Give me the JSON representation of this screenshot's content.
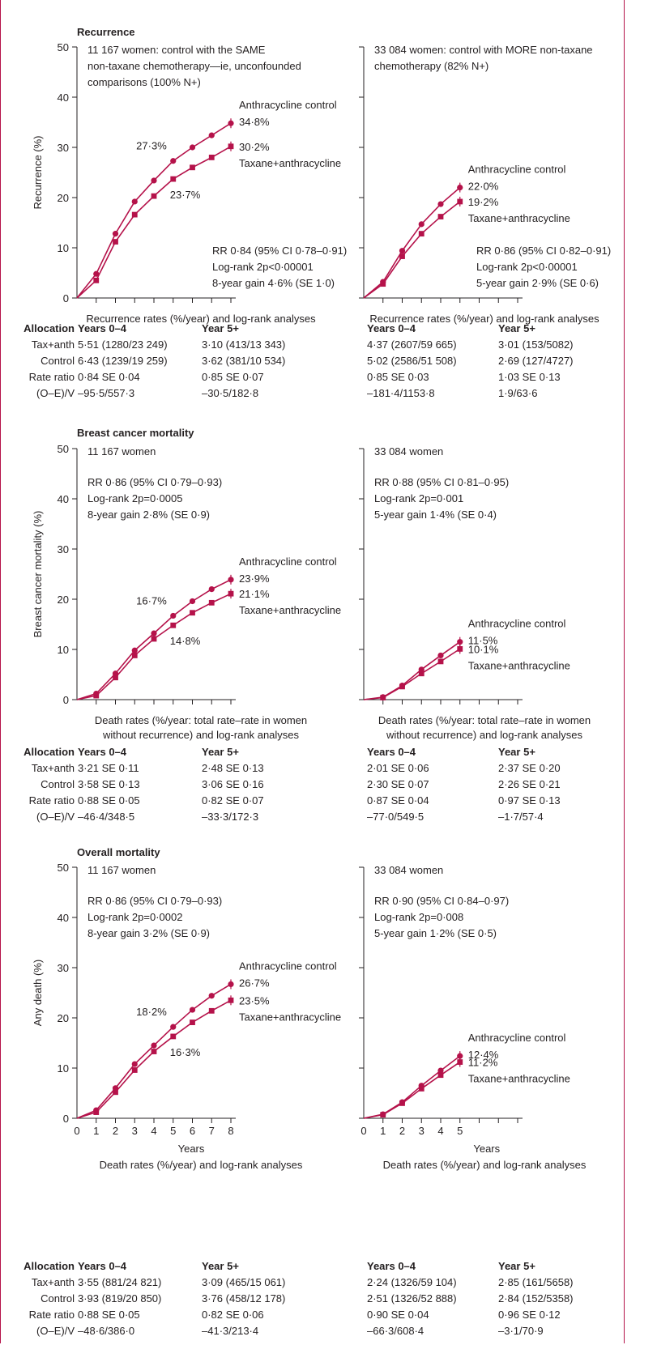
{
  "colors": {
    "series": "#b5124a",
    "axis": "#231f20",
    "frame": "#b5124a"
  },
  "panels": [
    {
      "title": "Recurrence",
      "ylabel": "Recurrence (%)",
      "left": {
        "heading": [
          "11 167 women: control with the SAME",
          "non-taxane chemotherapy—ie, unconfounded",
          "comparisons (100% N+)"
        ],
        "stats": [
          "RR 0·84 (95% CI 0·78–0·91)",
          "Log-rank 2p<0·00001",
          "8-year gain 4·6% (SE 1·0)"
        ],
        "caption": [
          "Recurrence rates (%/year) and log-rank analyses"
        ]
      },
      "right": {
        "heading": [
          "33 084 women: control with MORE non-taxane",
          "chemotherapy (82% N+)"
        ],
        "stats": [
          "RR 0·86 (95% CI 0·82–0·91)",
          "Log-rank 2p<0·00001",
          "5-year gain 2·9% (SE 0·6)"
        ],
        "caption": [
          "Recurrence rates (%/year) and log-rank analyses"
        ]
      },
      "table": {
        "labels": [
          "Allocation",
          "Tax+anth",
          "Control",
          "Rate ratio",
          "(O–E)/V"
        ],
        "left": {
          "headers": [
            "Years 0–4",
            "Year 5+"
          ],
          "rows": [
            [
              "5·51 (1280/23 249)",
              "3·10 (413/13 343)"
            ],
            [
              "6·43 (1239/19 259)",
              "3·62 (381/10 534)"
            ],
            [
              "0·84 SE 0·04",
              "0·85 SE 0·07"
            ],
            [
              "–95·5/557·3",
              "–30·5/182·8"
            ]
          ]
        },
        "right": {
          "headers": [
            "Years 0–4",
            "Year 5+"
          ],
          "rows": [
            [
              "4·37 (2607/59 665)",
              "3·01 (153/5082)"
            ],
            [
              "5·02 (2586/51 508)",
              "2·69 (127/4727)"
            ],
            [
              "0·85 SE 0·03",
              "1·03 SE 0·13"
            ],
            [
              "–181·4/1153·8",
              "1·9/63·6"
            ]
          ]
        }
      }
    },
    {
      "title": "Breast cancer mortality",
      "ylabel": "Breast cancer mortality (%)",
      "left": {
        "heading": [
          "11 167 women"
        ],
        "stats": [
          "RR 0·86 (95% CI 0·79–0·93)",
          "Log-rank 2p=0·0005",
          "8-year gain 2·8% (SE 0·9)"
        ],
        "caption": [
          "Death rates (%/year: total rate–rate in women",
          "without recurrence) and log-rank analyses"
        ]
      },
      "right": {
        "heading": [
          "33 084 women"
        ],
        "stats": [
          "RR 0·88 (95% CI 0·81–0·95)",
          "Log-rank 2p=0·001",
          "5-year gain 1·4% (SE 0·4)"
        ],
        "caption": [
          "Death rates (%/year: total rate–rate in women",
          "without recurrence) and log-rank analyses"
        ]
      },
      "table": {
        "labels": [
          "Allocation",
          "Tax+anth",
          "Control",
          "Rate ratio",
          "(O–E)/V"
        ],
        "left": {
          "headers": [
            "Years 0–4",
            "Year 5+"
          ],
          "rows": [
            [
              "3·21 SE 0·11",
              "2·48 SE 0·13"
            ],
            [
              "3·58 SE 0·13",
              "3·06 SE 0·16"
            ],
            [
              "0·88 SE 0·05",
              "0·82 SE 0·07"
            ],
            [
              "–46·4/348·5",
              "–33·3/172·3"
            ]
          ]
        },
        "right": {
          "headers": [
            "Years 0–4",
            "Year 5+"
          ],
          "rows": [
            [
              "2·01 SE 0·06",
              "2·37 SE 0·20"
            ],
            [
              "2·30 SE 0·07",
              "2·26 SE 0·21"
            ],
            [
              "0·87 SE 0·04",
              "0·97 SE 0·13"
            ],
            [
              "–77·0/549·5",
              "–1·7/57·4"
            ]
          ]
        }
      }
    },
    {
      "title": "Overall mortality",
      "ylabel": "Any death (%)",
      "left": {
        "heading": [
          "11 167 women"
        ],
        "stats": [
          "RR 0·86 (95% CI 0·79–0·93)",
          "Log-rank 2p=0·0002",
          "8-year gain 3·2% (SE 0·9)"
        ],
        "caption": [
          "Death rates (%/year) and log-rank analyses"
        ]
      },
      "right": {
        "heading": [
          "33 084 women"
        ],
        "stats": [
          "RR 0·90 (95% CI 0·84–0·97)",
          "Log-rank 2p=0·008",
          "5-year gain 1·2% (SE 0·5)"
        ],
        "caption": [
          "Death rates (%/year) and log-rank analyses"
        ]
      },
      "table": {
        "labels": [
          "Allocation",
          "Tax+anth",
          "Control",
          "Rate ratio",
          "(O–E)/V"
        ],
        "left": {
          "headers": [
            "Years 0–4",
            "Year 5+"
          ],
          "rows": [
            [
              "3·55 (881/24 821)",
              "3·09 (465/15 061)"
            ],
            [
              "3·93 (819/20 850)",
              "3·76 (458/12 178)"
            ],
            [
              "0·88 SE 0·05",
              "0·82 SE 0·06"
            ],
            [
              "–48·6/386·0",
              "–41·3/213·4"
            ]
          ]
        },
        "right": {
          "headers": [
            "Years 0–4",
            "Year 5+"
          ],
          "rows": [
            [
              "2·24 (1326/59 104)",
              "2·85 (161/5658)"
            ],
            [
              "2·51 (1326/52 888)",
              "2·84 (152/5358)"
            ],
            [
              "0·90 SE 0·04",
              "0·96 SE 0·12"
            ],
            [
              "–66·3/608·4",
              "–3·1/70·9"
            ]
          ]
        }
      }
    }
  ],
  "chart_data": [
    {
      "type": "line",
      "title": "Recurrence",
      "panel": "left",
      "xlabel": "",
      "ylabel": "Recurrence (%)",
      "xlim": [
        0,
        8
      ],
      "ylim": [
        0,
        50
      ],
      "yticks": [
        0,
        10,
        20,
        30,
        40,
        50
      ],
      "series": [
        {
          "name": "Anthracycline control",
          "marker": "circle",
          "x": [
            0,
            1,
            2,
            3,
            4,
            5,
            6,
            7,
            8
          ],
          "y": [
            0,
            4.8,
            12.8,
            19.2,
            23.4,
            27.3,
            30.0,
            32.4,
            34.8
          ],
          "end_label": "34·8%"
        },
        {
          "name": "Taxane+anthracycline",
          "marker": "square",
          "x": [
            0,
            1,
            2,
            3,
            4,
            5,
            6,
            7,
            8
          ],
          "y": [
            0,
            3.5,
            11.2,
            16.6,
            20.3,
            23.7,
            26.0,
            28.0,
            30.2
          ],
          "end_label": "30·2%"
        }
      ],
      "annotations": [
        {
          "x": 5,
          "series": 0,
          "text": "27·3%"
        },
        {
          "x": 5,
          "series": 1,
          "text": "23·7%"
        }
      ]
    },
    {
      "type": "line",
      "title": "",
      "panel": "right",
      "xlabel": "",
      "ylabel": "",
      "xlim": [
        0,
        8
      ],
      "ylim": [
        0,
        50
      ],
      "series": [
        {
          "name": "Anthracycline control",
          "marker": "circle",
          "x": [
            0,
            1,
            2,
            3,
            4,
            5
          ],
          "y": [
            0,
            3.2,
            9.4,
            14.7,
            18.7,
            22.0
          ],
          "end_label": "22·0%"
        },
        {
          "name": "Taxane+anthracycline",
          "marker": "square",
          "x": [
            0,
            1,
            2,
            3,
            4,
            5
          ],
          "y": [
            0,
            2.8,
            8.3,
            12.8,
            16.2,
            19.2
          ],
          "end_label": "19·2%"
        }
      ]
    },
    {
      "type": "line",
      "title": "Breast cancer mortality",
      "panel": "left",
      "xlabel": "",
      "ylabel": "Breast cancer mortality (%)",
      "xlim": [
        0,
        8
      ],
      "ylim": [
        0,
        50
      ],
      "yticks": [
        0,
        10,
        20,
        30,
        40,
        50
      ],
      "series": [
        {
          "name": "Anthracycline control",
          "marker": "circle",
          "x": [
            0,
            1,
            2,
            3,
            4,
            5,
            6,
            7,
            8
          ],
          "y": [
            0,
            1.2,
            5.2,
            9.8,
            13.2,
            16.7,
            19.6,
            22.0,
            23.9
          ],
          "end_label": "23·9%"
        },
        {
          "name": "Taxane+anthracycline",
          "marker": "square",
          "x": [
            0,
            1,
            2,
            3,
            4,
            5,
            6,
            7,
            8
          ],
          "y": [
            0,
            0.8,
            4.4,
            8.8,
            12.1,
            14.8,
            17.3,
            19.3,
            21.1
          ],
          "end_label": "21·1%"
        }
      ],
      "annotations": [
        {
          "x": 5,
          "series": 0,
          "text": "16·7%"
        },
        {
          "x": 5,
          "series": 1,
          "text": "14·8%"
        }
      ]
    },
    {
      "type": "line",
      "title": "",
      "panel": "right",
      "xlabel": "",
      "ylabel": "",
      "xlim": [
        0,
        8
      ],
      "ylim": [
        0,
        50
      ],
      "series": [
        {
          "name": "Anthracycline control",
          "marker": "circle",
          "x": [
            0,
            1,
            2,
            3,
            4,
            5
          ],
          "y": [
            0,
            0.5,
            2.8,
            6.0,
            8.8,
            11.5
          ],
          "end_label": "11·5%"
        },
        {
          "name": "Taxane+anthracycline",
          "marker": "square",
          "x": [
            0,
            1,
            2,
            3,
            4,
            5
          ],
          "y": [
            0,
            0.4,
            2.6,
            5.2,
            7.6,
            10.1
          ],
          "end_label": "10·1%"
        }
      ]
    },
    {
      "type": "line",
      "title": "Overall mortality",
      "panel": "left",
      "xlabel": "Years",
      "ylabel": "Any death (%)",
      "xlim": [
        0,
        8
      ],
      "ylim": [
        0,
        50
      ],
      "xticks": [
        0,
        1,
        2,
        3,
        4,
        5,
        6,
        7,
        8
      ],
      "yticks": [
        0,
        10,
        20,
        30,
        40,
        50
      ],
      "series": [
        {
          "name": "Anthracycline control",
          "marker": "circle",
          "x": [
            0,
            1,
            2,
            3,
            4,
            5,
            6,
            7,
            8
          ],
          "y": [
            0,
            1.6,
            6.0,
            10.8,
            14.5,
            18.2,
            21.6,
            24.4,
            26.7
          ],
          "end_label": "26·7%"
        },
        {
          "name": "Taxane+anthracycline",
          "marker": "square",
          "x": [
            0,
            1,
            2,
            3,
            4,
            5,
            6,
            7,
            8
          ],
          "y": [
            0,
            1.2,
            5.2,
            9.6,
            13.3,
            16.3,
            19.1,
            21.4,
            23.5
          ],
          "end_label": "23·5%"
        }
      ],
      "annotations": [
        {
          "x": 5,
          "series": 0,
          "text": "18·2%"
        },
        {
          "x": 5,
          "series": 1,
          "text": "16·3%"
        }
      ]
    },
    {
      "type": "line",
      "title": "",
      "panel": "right",
      "xlabel": "Years",
      "ylabel": "",
      "xlim": [
        0,
        8
      ],
      "ylim": [
        0,
        50
      ],
      "xticks": [
        0,
        1,
        2,
        3,
        4,
        5
      ],
      "series": [
        {
          "name": "Anthracycline control",
          "marker": "circle",
          "x": [
            0,
            1,
            2,
            3,
            4,
            5
          ],
          "y": [
            0,
            0.8,
            3.2,
            6.5,
            9.5,
            12.4
          ],
          "end_label": "12·4%"
        },
        {
          "name": "Taxane+anthracycline",
          "marker": "square",
          "x": [
            0,
            1,
            2,
            3,
            4,
            5
          ],
          "y": [
            0,
            0.7,
            3.0,
            5.9,
            8.6,
            11.2
          ],
          "end_label": "11·2%"
        }
      ]
    }
  ]
}
